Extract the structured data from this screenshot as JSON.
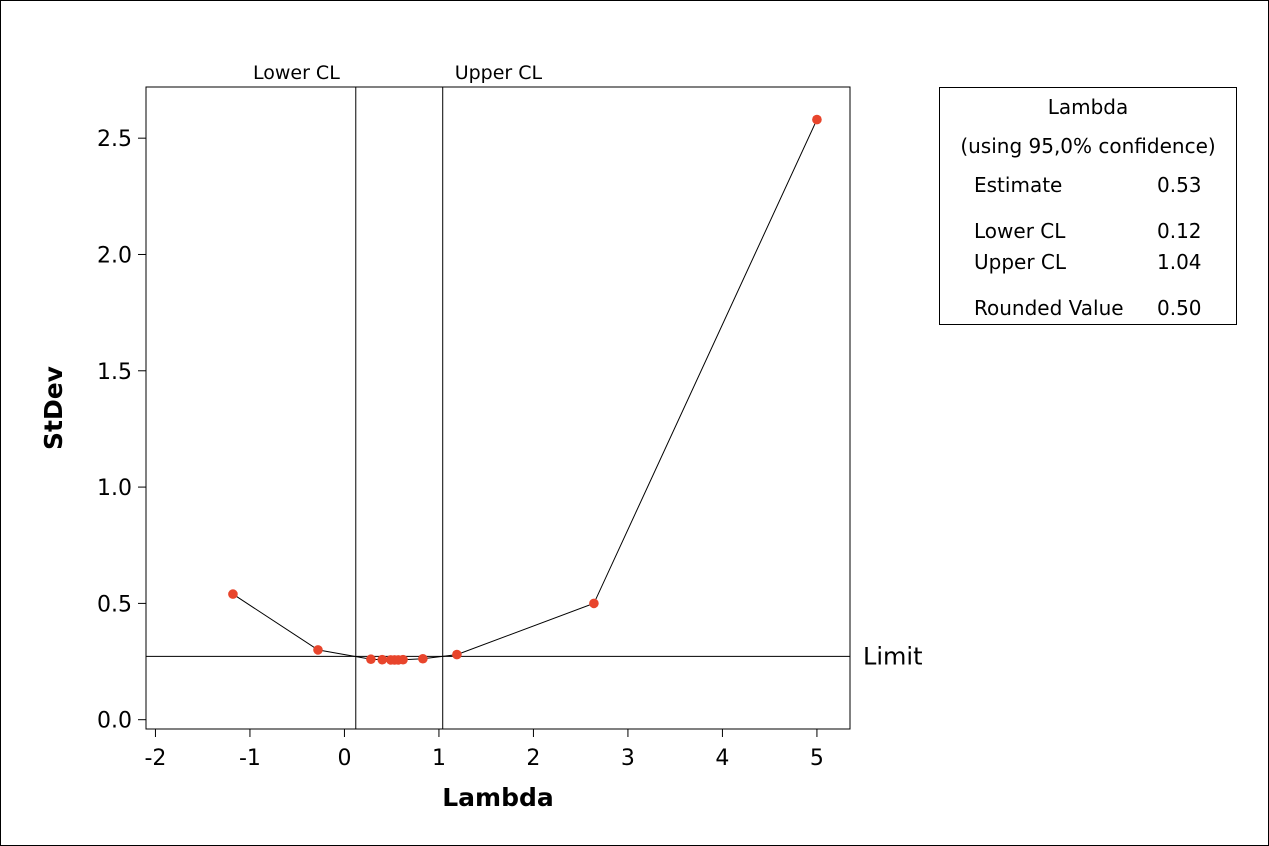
{
  "chart_data": {
    "type": "line",
    "xlabel": "Lambda",
    "ylabel": "StDev",
    "xlim": [
      -2.1,
      5.35
    ],
    "ylim": [
      -0.04,
      2.72
    ],
    "xticks": [
      -2,
      -1,
      0,
      1,
      2,
      3,
      4,
      5
    ],
    "yticks": [
      0.0,
      0.5,
      1.0,
      1.5,
      2.0,
      2.5
    ],
    "xtick_labels": [
      "-2",
      "-1",
      "0",
      "1",
      "2",
      "3",
      "4",
      "5"
    ],
    "ytick_labels": [
      "0.0",
      "0.5",
      "1.0",
      "1.5",
      "2.0",
      "2.5"
    ],
    "grid": false,
    "series": [
      {
        "x": [
          -1.18,
          -0.28,
          0.28,
          0.4,
          0.49,
          0.53,
          0.57,
          0.62,
          0.83,
          1.19,
          2.64,
          5.0
        ],
        "y": [
          0.54,
          0.3,
          0.26,
          0.258,
          0.257,
          0.257,
          0.257,
          0.258,
          0.262,
          0.28,
          0.5,
          2.58
        ],
        "color": "#e8452c"
      }
    ],
    "reference_lines": [
      {
        "orientation": "vertical",
        "value": 0.12,
        "label": "Lower CL"
      },
      {
        "orientation": "vertical",
        "value": 1.04,
        "label": "Upper CL"
      },
      {
        "orientation": "horizontal",
        "value": 0.272,
        "label": "Limit"
      }
    ]
  },
  "info_box": {
    "title": "Lambda",
    "subtitle": "(using 95,0% confidence)",
    "rows": [
      {
        "label": "Estimate",
        "value": "0.53"
      },
      {
        "label": "Lower CL",
        "value": "0.12"
      },
      {
        "label": "Upper CL",
        "value": "1.04"
      },
      {
        "label": "Rounded Value",
        "value": "0.50"
      }
    ]
  }
}
